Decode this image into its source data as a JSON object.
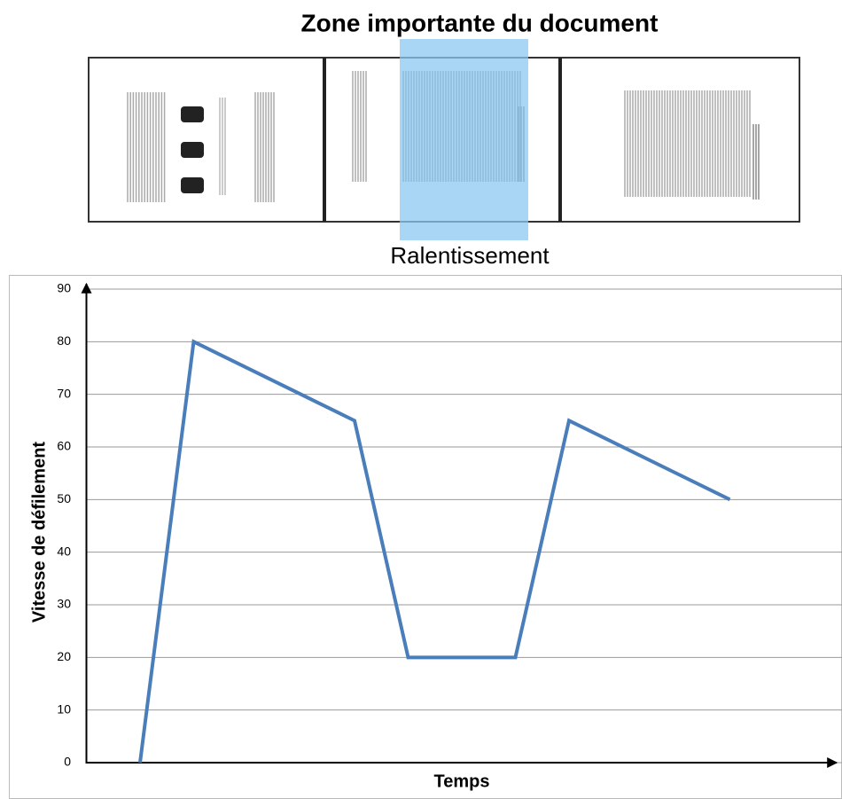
{
  "header": {
    "title": "Zone importante du document",
    "highlight_label": "Ralentissement"
  },
  "chart_data": {
    "type": "line",
    "x": [
      0,
      1,
      4,
      5,
      7,
      8,
      11
    ],
    "xlim": [
      -1,
      13
    ],
    "ylim": [
      0,
      90
    ],
    "yticks": [
      0,
      10,
      20,
      30,
      40,
      50,
      60,
      70,
      80,
      90
    ],
    "xlabel": "Temps",
    "ylabel": "Vitesse de défilement",
    "grid": true,
    "series": [
      {
        "color": "#4a7ebb",
        "values": [
          0,
          80,
          65,
          20,
          20,
          65,
          50
        ]
      }
    ]
  }
}
